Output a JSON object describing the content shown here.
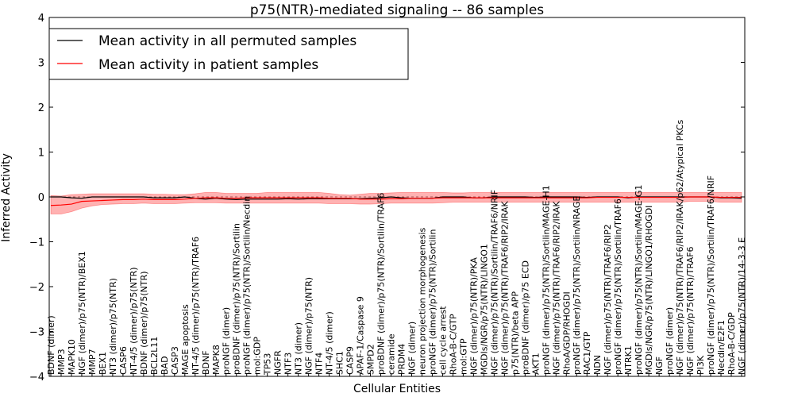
{
  "chart_data": {
    "type": "line",
    "title": "p75(NTR)-mediated signaling -- 86 samples",
    "xlabel": "Cellular Entities",
    "ylabel": "Inferred Activity",
    "ylim": [
      -4,
      4
    ],
    "yticks": [
      -4,
      -3,
      -2,
      -1,
      0,
      1,
      2,
      3,
      4
    ],
    "legend": {
      "placement": "top-left",
      "entries": [
        {
          "label": "Mean activity in all permuted samples",
          "color": "#000000"
        },
        {
          "label": "Mean activity in patient samples",
          "color": "#ff0000"
        }
      ]
    },
    "categories": [
      "BDNF (dimer)",
      "MMP3",
      "MAPK10",
      "NGF (dimer)/p75(NTR)/BEX1",
      "MMP7",
      "BEX1",
      "NT3 (dimer)/p75(NTR)",
      "CASP6",
      "NT-4/5 (dimer)/p75(NTR)",
      "BDNF (dimer)/p75(NTR)",
      "BCL2L11",
      "BAD",
      "CASP3",
      "MAGE apoptosis",
      "NT-4/5 (dimer)/p75(NTR)/TRAF6",
      "BDNF",
      "MAPK8",
      "proNGF (dimer)",
      "proBDNF (dimer)/p75(NTR)/Sortilin",
      "proNGF (dimer)/p75(NTR)/Sortilin/Necdin",
      "mol:GDP",
      "TP53",
      "NGFR",
      "NTF3",
      "NT3 (dimer)",
      "NGF (dimer)/p75(NTR)",
      "NTF4",
      "NT-4/5 (dimer)",
      "SHC1",
      "CASP9",
      "APAF-1/Caspase 9",
      "SMPD2",
      "proBDNF (dimer)/p75(NTR)/Sortilin/TRAF6",
      "ceramide",
      "PRDM4",
      "NGF (dimer)",
      "neuron projection morphogenesis",
      "proNGF (dimer)/p75(NTR)/Sortilin",
      "cell cycle arrest",
      "RhoA-B-C/GTP",
      "mol:GTP",
      "NGF (dimer)/p75(NTR)/PKA",
      "MGDIs/NGR/p75(NTR)/LINGO1",
      "NGF (dimer)/p75(NTR)/Sortilin/TRAF6/NRIF",
      "NGF (dimer)/p75(NTR)/TRAF6/RIP2/IRAK",
      "p75(NTR)/beta APP",
      "proBDNF (dimer)/p75 ECD",
      "AKT1",
      "proNGF (dimer)/p75(NTR)/Sortilin/MAGE-H1",
      "NGF (dimer)/p75(NTR)/TRAF6/RIP2/IRAK",
      "RhoA/GDP/RHOGDI",
      "proNGF (dimer)/p75(NTR)/Sortilin/NRAGE",
      "RAC1/GTP",
      "NDN",
      "NGF (dimer)/p75(NTR)/TRAF6/RIP2",
      "proNGF (dimer)/p75(NTR)/Sortilin/TRAF6",
      "NTRK1",
      "proNGF (dimer)/p75(NTR)/Sortilin/MAGE-G1",
      "MGDIs/NGR/p75(NTR)/LINGO1/RHOGDI",
      "NGF",
      "proNGF (dimer)",
      "NGF (dimer)/p75(NTR)/TRAF6/RIP2/IRAK/p62/Atypical PKCs",
      "NGF (dimer)/p75(NTR)/TRAF6",
      "PI3K",
      "proNGF (dimer)/p75(NTR)/Sortilin/TRAF6/NRIF",
      "Necdin/E2F1",
      "RhoA-B-C/GDP",
      "NGF (dimer)/p75(NTR)/14-3-3 E"
    ],
    "series": [
      {
        "name": "Mean activity in all permuted samples",
        "color": "#000000",
        "values": [
          0,
          0,
          -0.02,
          -0.03,
          0,
          0,
          0,
          0,
          0,
          0,
          -0.02,
          -0.02,
          -0.02,
          0,
          -0.03,
          -0.05,
          -0.03,
          -0.05,
          -0.06,
          -0.05,
          -0.05,
          -0.05,
          -0.05,
          -0.04,
          -0.05,
          -0.04,
          -0.04,
          -0.04,
          -0.04,
          -0.04,
          -0.04,
          -0.03,
          -0.02,
          0,
          -0.02,
          -0.03,
          -0.03,
          -0.03,
          0,
          0,
          0,
          -0.02,
          -0.02,
          0,
          0,
          0,
          0,
          -0.01,
          0,
          0,
          0,
          0,
          -0.01,
          0,
          0,
          0,
          -0.02,
          0,
          0,
          0,
          0,
          0,
          0,
          0,
          0,
          -0.02,
          -0.02,
          -0.03
        ]
      },
      {
        "name": "Mean activity in patient samples",
        "color": "#ff0000",
        "values": [
          -0.19,
          -0.18,
          -0.16,
          -0.1,
          -0.09,
          -0.08,
          -0.07,
          -0.06,
          -0.06,
          -0.05,
          -0.06,
          -0.06,
          -0.06,
          -0.05,
          -0.03,
          -0.02,
          -0.02,
          -0.03,
          -0.03,
          -0.02,
          -0.02,
          -0.02,
          -0.02,
          -0.02,
          -0.02,
          -0.02,
          -0.02,
          -0.03,
          -0.03,
          -0.03,
          -0.05,
          -0.05,
          -0.05,
          -0.04,
          -0.04,
          -0.03,
          -0.03,
          -0.03,
          -0.02,
          -0.02,
          -0.02,
          -0.02,
          -0.02,
          -0.02,
          -0.02,
          -0.02,
          -0.02,
          -0.02,
          -0.02,
          -0.02,
          -0.02,
          -0.02,
          -0.02,
          -0.01,
          -0.01,
          -0.01,
          -0.01,
          -0.01,
          -0.01,
          -0.01,
          -0.01,
          -0.01,
          0,
          0,
          0,
          -0.01,
          -0.01,
          -0.01
        ],
        "band_upper": [
          0.03,
          0.02,
          0.05,
          0.06,
          0.07,
          0.07,
          0.07,
          0.07,
          0.07,
          0.07,
          0.06,
          0.06,
          0.05,
          0.05,
          0.07,
          0.1,
          0.1,
          0.08,
          0.08,
          0.08,
          0.08,
          0.1,
          0.1,
          0.1,
          0.1,
          0.1,
          0.1,
          0.08,
          0.05,
          0.04,
          0.06,
          0.08,
          0.08,
          0.09,
          0.1,
          0.1,
          0.1,
          0.1,
          0.1,
          0.09,
          0.09,
          0.1,
          0.1,
          0.1,
          0.1,
          0.1,
          0.1,
          0.1,
          0.1,
          0.1,
          0.1,
          0.1,
          0.1,
          0.1,
          0.1,
          0.1,
          0.1,
          0.1,
          0.1,
          0.1,
          0.1,
          0.1,
          0.1,
          0.1,
          0.1,
          0.1,
          0.1,
          0.1
        ],
        "band_lower": [
          -0.38,
          -0.38,
          -0.33,
          -0.25,
          -0.2,
          -0.17,
          -0.16,
          -0.15,
          -0.15,
          -0.14,
          -0.15,
          -0.15,
          -0.15,
          -0.14,
          -0.13,
          -0.13,
          -0.13,
          -0.14,
          -0.14,
          -0.14,
          -0.14,
          -0.14,
          -0.14,
          -0.14,
          -0.14,
          -0.14,
          -0.14,
          -0.15,
          -0.15,
          -0.15,
          -0.16,
          -0.16,
          -0.15,
          -0.14,
          -0.14,
          -0.14,
          -0.14,
          -0.14,
          -0.13,
          -0.12,
          -0.12,
          -0.12,
          -0.12,
          -0.12,
          -0.12,
          -0.12,
          -0.12,
          -0.12,
          -0.12,
          -0.12,
          -0.12,
          -0.12,
          -0.12,
          -0.12,
          -0.12,
          -0.12,
          -0.12,
          -0.12,
          -0.12,
          -0.12,
          -0.12,
          -0.12,
          -0.1,
          -0.1,
          -0.1,
          -0.12,
          -0.12,
          -0.12
        ]
      }
    ]
  }
}
